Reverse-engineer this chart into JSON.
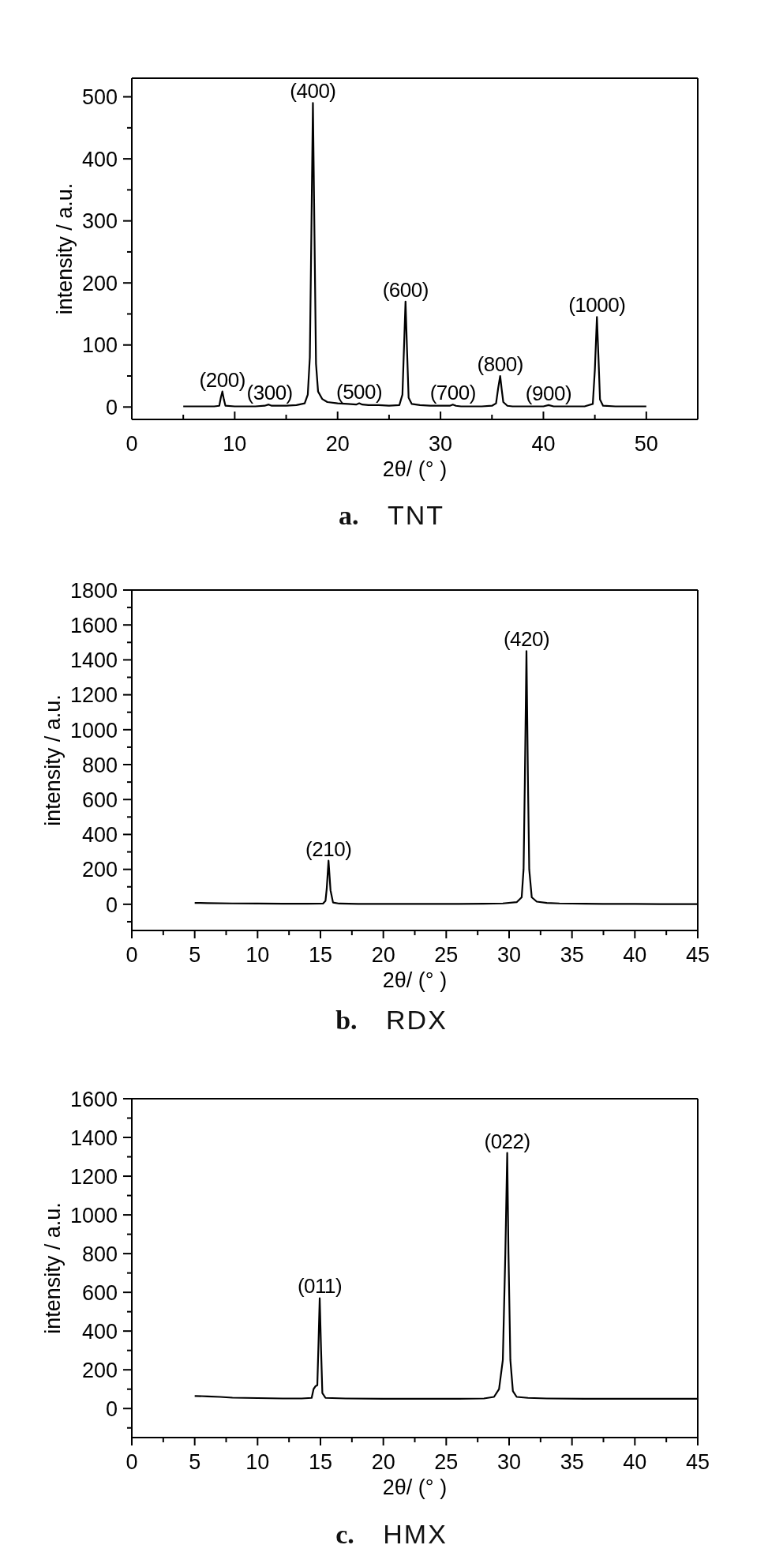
{
  "chart_data": [
    {
      "type": "line",
      "title": "a. TNT",
      "xlabel": "2θ/ (° )",
      "ylabel": "intensity / a.u.",
      "color": "#000000",
      "x": [
        5,
        6,
        7,
        8,
        8.5,
        8.65,
        8.8,
        8.95,
        9.1,
        10,
        11,
        12,
        12.9,
        13.3,
        13.6,
        14,
        15,
        16,
        16.8,
        17.1,
        17.3,
        17.45,
        17.6,
        17.75,
        17.9,
        18.1,
        18.5,
        19,
        20,
        21,
        21.8,
        22.1,
        22.4,
        23,
        24,
        25,
        26,
        26.3,
        26.5,
        26.6,
        26.75,
        26.9,
        27.2,
        28,
        29,
        30,
        30.9,
        31.2,
        31.5,
        32,
        33,
        34,
        35,
        35.4,
        35.6,
        35.8,
        35.95,
        36.1,
        36.5,
        37,
        38,
        39,
        40,
        40.5,
        41,
        42,
        43,
        44,
        44.8,
        45,
        45.2,
        45.35,
        45.5,
        45.8,
        47,
        48,
        49,
        50
      ],
      "values": [
        1,
        1,
        1,
        1,
        2,
        15,
        25,
        12,
        2,
        1,
        1,
        1,
        2,
        4,
        2,
        2,
        2,
        3,
        6,
        20,
        80,
        280,
        490,
        280,
        70,
        25,
        13,
        8,
        6,
        5,
        4,
        6,
        4,
        3,
        3,
        2,
        3,
        20,
        120,
        170,
        90,
        15,
        5,
        3,
        2,
        2,
        2,
        4,
        2,
        1,
        1,
        1,
        2,
        6,
        30,
        50,
        28,
        8,
        2,
        1,
        1,
        1,
        1,
        3,
        1,
        1,
        1,
        1,
        5,
        60,
        145,
        80,
        12,
        2,
        1,
        1,
        1,
        1
      ],
      "xlim": [
        0,
        55
      ],
      "xticks": [
        0,
        {
          "value": 5,
          "label": null
        },
        10,
        {
          "value": 15,
          "label": null
        },
        20,
        {
          "value": 25,
          "label": null
        },
        30,
        {
          "value": 35,
          "label": null
        },
        40,
        {
          "value": 45,
          "label": null
        },
        50
      ],
      "ylim": [
        -20,
        530
      ],
      "yticks": [
        0,
        {
          "value": 50,
          "label": null
        },
        100,
        {
          "value": 150,
          "label": null
        },
        200,
        {
          "value": 250,
          "label": null
        },
        300,
        {
          "value": 350,
          "label": null
        },
        400,
        {
          "value": 450,
          "label": null
        },
        500
      ],
      "annotations": [
        {
          "text": "(200)",
          "x": 8.8,
          "y": 25
        },
        {
          "text": "(300)",
          "x": 13.4,
          "y": 4
        },
        {
          "text": "(400)",
          "x": 17.6,
          "y": 490
        },
        {
          "text": "(500)",
          "x": 22.1,
          "y": 6
        },
        {
          "text": "(600)",
          "x": 26.6,
          "y": 170
        },
        {
          "text": "(700)",
          "x": 31.2,
          "y": 4
        },
        {
          "text": "(800)",
          "x": 35.8,
          "y": 50
        },
        {
          "text": "(900)",
          "x": 40.5,
          "y": 3
        },
        {
          "text": "(1000)",
          "x": 45.2,
          "y": 145
        }
      ]
    },
    {
      "type": "line",
      "title": "b. RDX",
      "xlabel": "2θ/ (° )",
      "ylabel": "intensity / a.u.",
      "color": "#000000",
      "x": [
        5,
        6,
        8,
        10,
        12,
        14,
        15.2,
        15.4,
        15.5,
        15.64,
        15.8,
        16,
        16.5,
        18,
        20,
        22,
        24,
        26,
        28,
        29.5,
        30.6,
        31,
        31.15,
        31.25,
        31.38,
        31.5,
        31.6,
        31.8,
        32.2,
        33,
        34,
        36,
        38,
        40,
        42,
        45
      ],
      "values": [
        8,
        7,
        5,
        4,
        3,
        3,
        4,
        20,
        90,
        250,
        80,
        10,
        4,
        2,
        2,
        2,
        2,
        2,
        3,
        5,
        12,
        40,
        200,
        700,
        1450,
        700,
        200,
        40,
        15,
        8,
        5,
        3,
        2,
        2,
        1,
        1
      ],
      "xlim": [
        0,
        45
      ],
      "xticks": [
        0,
        {
          "value": 2.5,
          "label": null
        },
        5,
        {
          "value": 7.5,
          "label": null
        },
        10,
        {
          "value": 12.5,
          "label": null
        },
        15,
        {
          "value": 17.5,
          "label": null
        },
        20,
        {
          "value": 22.5,
          "label": null
        },
        25,
        {
          "value": 27.5,
          "label": null
        },
        30,
        {
          "value": 32.5,
          "label": null
        },
        35,
        {
          "value": 37.5,
          "label": null
        },
        40,
        {
          "value": 42.5,
          "label": null
        },
        45
      ],
      "ylim": [
        -150,
        1800
      ],
      "yticks": [
        {
          "value": -100,
          "label": null
        },
        0,
        {
          "value": 100,
          "label": null
        },
        200,
        {
          "value": 300,
          "label": null
        },
        400,
        {
          "value": 500,
          "label": null
        },
        600,
        {
          "value": 700,
          "label": null
        },
        800,
        {
          "value": 900,
          "label": null
        },
        1000,
        {
          "value": 1100,
          "label": null
        },
        1200,
        {
          "value": 1300,
          "label": null
        },
        1400,
        {
          "value": 1500,
          "label": null
        },
        1600,
        {
          "value": 1700,
          "label": null
        },
        1800
      ],
      "annotations": [
        {
          "text": "(210)",
          "x": 15.64,
          "y": 250
        },
        {
          "text": "(420)",
          "x": 31.38,
          "y": 1450
        }
      ]
    },
    {
      "type": "line",
      "title": "c. HMX",
      "xlabel": "2θ/ (° )",
      "ylabel": "intensity / a.u.",
      "color": "#000000",
      "x": [
        5,
        6,
        7,
        8,
        10,
        12,
        13.5,
        14.3,
        14.45,
        14.6,
        14.75,
        14.85,
        14.94,
        15.05,
        15.15,
        15.4,
        17,
        20,
        23,
        26,
        28,
        28.8,
        29.2,
        29.5,
        29.7,
        29.85,
        29.95,
        30.1,
        30.3,
        30.6,
        31.5,
        33,
        36,
        40,
        45
      ],
      "values": [
        65,
        63,
        60,
        56,
        54,
        52,
        52,
        55,
        100,
        115,
        120,
        350,
        570,
        300,
        80,
        55,
        52,
        50,
        50,
        50,
        52,
        60,
        100,
        250,
        800,
        1320,
        800,
        250,
        90,
        60,
        55,
        52,
        50,
        50,
        50
      ],
      "xlim": [
        0,
        45
      ],
      "xticks": [
        0,
        {
          "value": 2.5,
          "label": null
        },
        5,
        {
          "value": 7.5,
          "label": null
        },
        10,
        {
          "value": 12.5,
          "label": null
        },
        15,
        {
          "value": 17.5,
          "label": null
        },
        20,
        {
          "value": 22.5,
          "label": null
        },
        25,
        {
          "value": 27.5,
          "label": null
        },
        30,
        {
          "value": 32.5,
          "label": null
        },
        35,
        {
          "value": 37.5,
          "label": null
        },
        40,
        {
          "value": 42.5,
          "label": null
        },
        45
      ],
      "ylim": [
        -150,
        1600
      ],
      "yticks": [
        {
          "value": -100,
          "label": null
        },
        0,
        {
          "value": 100,
          "label": null
        },
        200,
        {
          "value": 300,
          "label": null
        },
        400,
        {
          "value": 500,
          "label": null
        },
        600,
        {
          "value": 700,
          "label": null
        },
        800,
        {
          "value": 900,
          "label": null
        },
        1000,
        {
          "value": 1100,
          "label": null
        },
        1200,
        {
          "value": 1300,
          "label": null
        },
        1400,
        {
          "value": 1500,
          "label": null
        },
        1600
      ],
      "annotations": [
        {
          "text": "(011)",
          "x": 14.94,
          "y": 570
        },
        {
          "text": "(022)",
          "x": 29.85,
          "y": 1320
        }
      ]
    }
  ]
}
